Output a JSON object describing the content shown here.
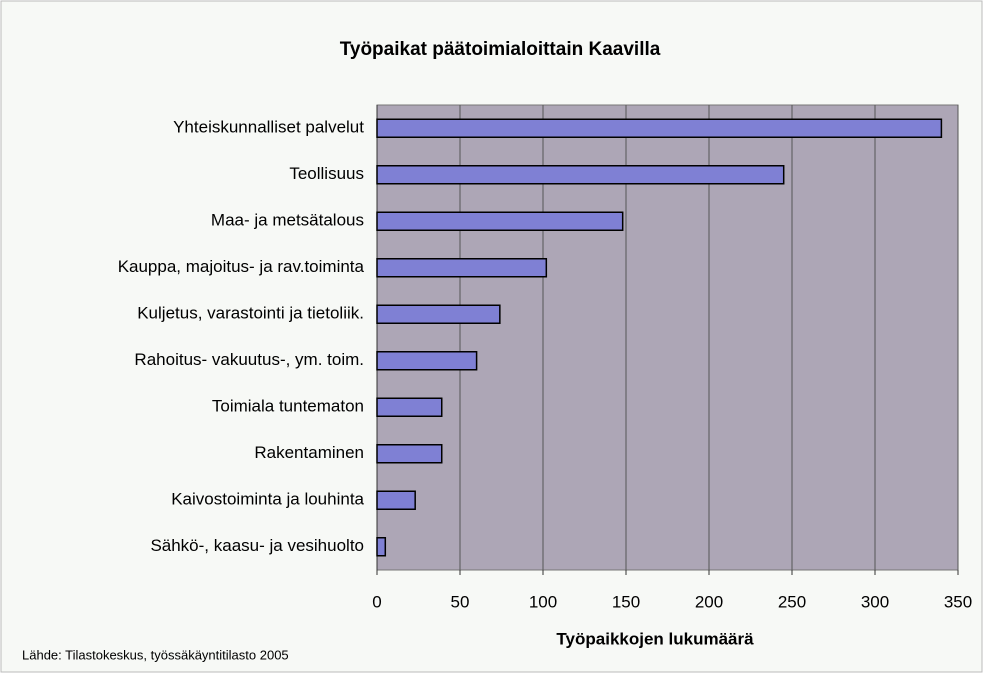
{
  "chart_data": {
    "type": "barh",
    "title": "Työpaikat päätoimialoittain Kaavilla",
    "categories": [
      "Yhteiskunnalliset palvelut",
      "Teollisuus",
      "Maa- ja metsätalous",
      "Kauppa, majoitus- ja rav.toiminta",
      "Kuljetus, varastointi ja tietoliik.",
      "Rahoitus- vakuutus-, ym. toim.",
      "Toimiala tuntematon",
      "Rakentaminen",
      "Kaivostoiminta ja louhinta",
      "Sähkö-, kaasu- ja vesihuolto"
    ],
    "values": [
      340,
      245,
      148,
      102,
      74,
      60,
      39,
      39,
      23,
      5
    ],
    "color": "#7f80d4",
    "xlim": [
      0,
      350
    ],
    "xticks": [
      0,
      50,
      100,
      150,
      200,
      250,
      300,
      350
    ],
    "grid": true,
    "xlabel": "Työpaikkojen lukumäärä",
    "source": "Lähde: Tilastokeskus, työssäkäyntitilasto 2005"
  }
}
